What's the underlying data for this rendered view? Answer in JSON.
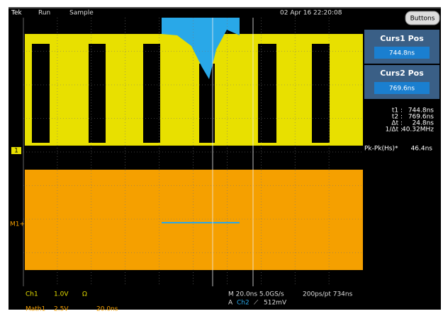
{
  "status_bar": {
    "brand": "Tek",
    "state": "Run",
    "mode": "Sample",
    "datetime": "02 Apr 16 22:20:08"
  },
  "side_panel": {
    "button": "Buttons",
    "cursor1": {
      "label": "Curs1 Pos",
      "value": "744.8ns"
    },
    "cursor2": {
      "label": "Curs2 Pos",
      "value": "769.6ns"
    }
  },
  "readouts": {
    "rows": [
      [
        "t1 :",
        "744.8ns"
      ],
      [
        "t2 :",
        "769.6ns"
      ],
      [
        "Δt :",
        "24.8ns"
      ],
      [
        "1/Δt :",
        "40.32MHz"
      ]
    ],
    "measurement": {
      "label": "Pk-Pk(Hs)*",
      "value": "46.4ns"
    }
  },
  "markers": {
    "ch1": "1",
    "math": "M1+"
  },
  "bottom": {
    "ch1": [
      "Ch1",
      "1.0V",
      "Ω"
    ],
    "math1": [
      "Math1",
      "2.5V",
      "20.0ns"
    ],
    "timebase": "M 20.0ns 5.0GS/s",
    "record": "200ps/pt 734ns",
    "trigger": [
      "A",
      "Ch2",
      "⟋",
      "512mV"
    ]
  }
}
